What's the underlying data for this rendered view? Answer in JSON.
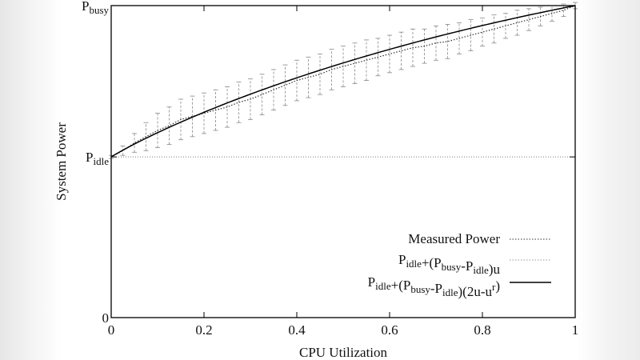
{
  "chart_data": {
    "type": "line",
    "title": "",
    "xlabel": "CPU Utilization",
    "ylabel": "System Power",
    "xlim": [
      0,
      1
    ],
    "x_ticks": [
      "0",
      "0.2",
      "0.4",
      "0.6",
      "0.8",
      "1"
    ],
    "y_ticks": [
      {
        "label": "0",
        "value": 0
      },
      {
        "label": "P",
        "sub": "idle",
        "value": 0.515
      },
      {
        "label": "P",
        "sub": "busy",
        "value": 1.0
      }
    ],
    "grid": "horizontal dotted lines at Pidle and Pbusy",
    "legend_position": "bottom-right",
    "legend": [
      {
        "parts": [
          [
            "Measured Power",
            ""
          ]
        ],
        "style": "dotted"
      },
      {
        "parts": [
          [
            "P",
            ""
          ],
          [
            "idle",
            "sub"
          ],
          [
            "+(P",
            ""
          ],
          [
            "busy",
            "sub"
          ],
          [
            "-P",
            ""
          ],
          [
            "idle",
            "sub"
          ],
          [
            ")u",
            ""
          ]
        ],
        "style": "gray-dotted"
      },
      {
        "parts": [
          [
            "P",
            ""
          ],
          [
            "idle",
            "sub"
          ],
          [
            "+(P",
            ""
          ],
          [
            "busy",
            "sub"
          ],
          [
            "-P",
            ""
          ],
          [
            "idle",
            "sub"
          ],
          [
            ")(2u-u",
            ""
          ],
          [
            "r",
            "sup"
          ],
          [
            ")",
            ""
          ]
        ],
        "style": "solid"
      }
    ],
    "series": [
      {
        "name": "Measured Power",
        "x": [
          0,
          0.025,
          0.05,
          0.075,
          0.1,
          0.125,
          0.15,
          0.175,
          0.2,
          0.225,
          0.25,
          0.275,
          0.3,
          0.325,
          0.35,
          0.375,
          0.4,
          0.425,
          0.45,
          0.475,
          0.5,
          0.525,
          0.55,
          0.575,
          0.6,
          0.625,
          0.65,
          0.675,
          0.7,
          0.725,
          0.75,
          0.775,
          0.8,
          0.825,
          0.85,
          0.875,
          0.9,
          0.925,
          0.95,
          0.975,
          1
        ],
        "y": [
          0.515,
          0.535,
          0.56,
          0.58,
          0.6,
          0.615,
          0.635,
          0.645,
          0.655,
          0.665,
          0.675,
          0.69,
          0.7,
          0.715,
          0.73,
          0.745,
          0.76,
          0.77,
          0.78,
          0.795,
          0.805,
          0.815,
          0.825,
          0.835,
          0.845,
          0.855,
          0.865,
          0.87,
          0.88,
          0.885,
          0.895,
          0.905,
          0.915,
          0.925,
          0.935,
          0.945,
          0.955,
          0.965,
          0.975,
          0.985,
          1.0
        ],
        "yerr": [
          0.005,
          0.015,
          0.03,
          0.045,
          0.055,
          0.06,
          0.065,
          0.065,
          0.065,
          0.065,
          0.065,
          0.065,
          0.065,
          0.065,
          0.065,
          0.065,
          0.065,
          0.065,
          0.065,
          0.065,
          0.065,
          0.065,
          0.065,
          0.06,
          0.06,
          0.06,
          0.06,
          0.055,
          0.055,
          0.055,
          0.05,
          0.05,
          0.045,
          0.045,
          0.04,
          0.04,
          0.035,
          0.03,
          0.025,
          0.02,
          0.01
        ]
      },
      {
        "name": "Pidle+(Pbusy-Pidle)(2u-u^r)",
        "model": "Pidle+(Pbusy-Pidle)(2u-u^r)",
        "p_idle": 0.515,
        "p_busy": 1.0,
        "r": 1.4
      }
    ],
    "colors": {
      "measured": "#333333",
      "errorbars": "#888888",
      "model": "#000000",
      "grid": "#777777"
    }
  }
}
